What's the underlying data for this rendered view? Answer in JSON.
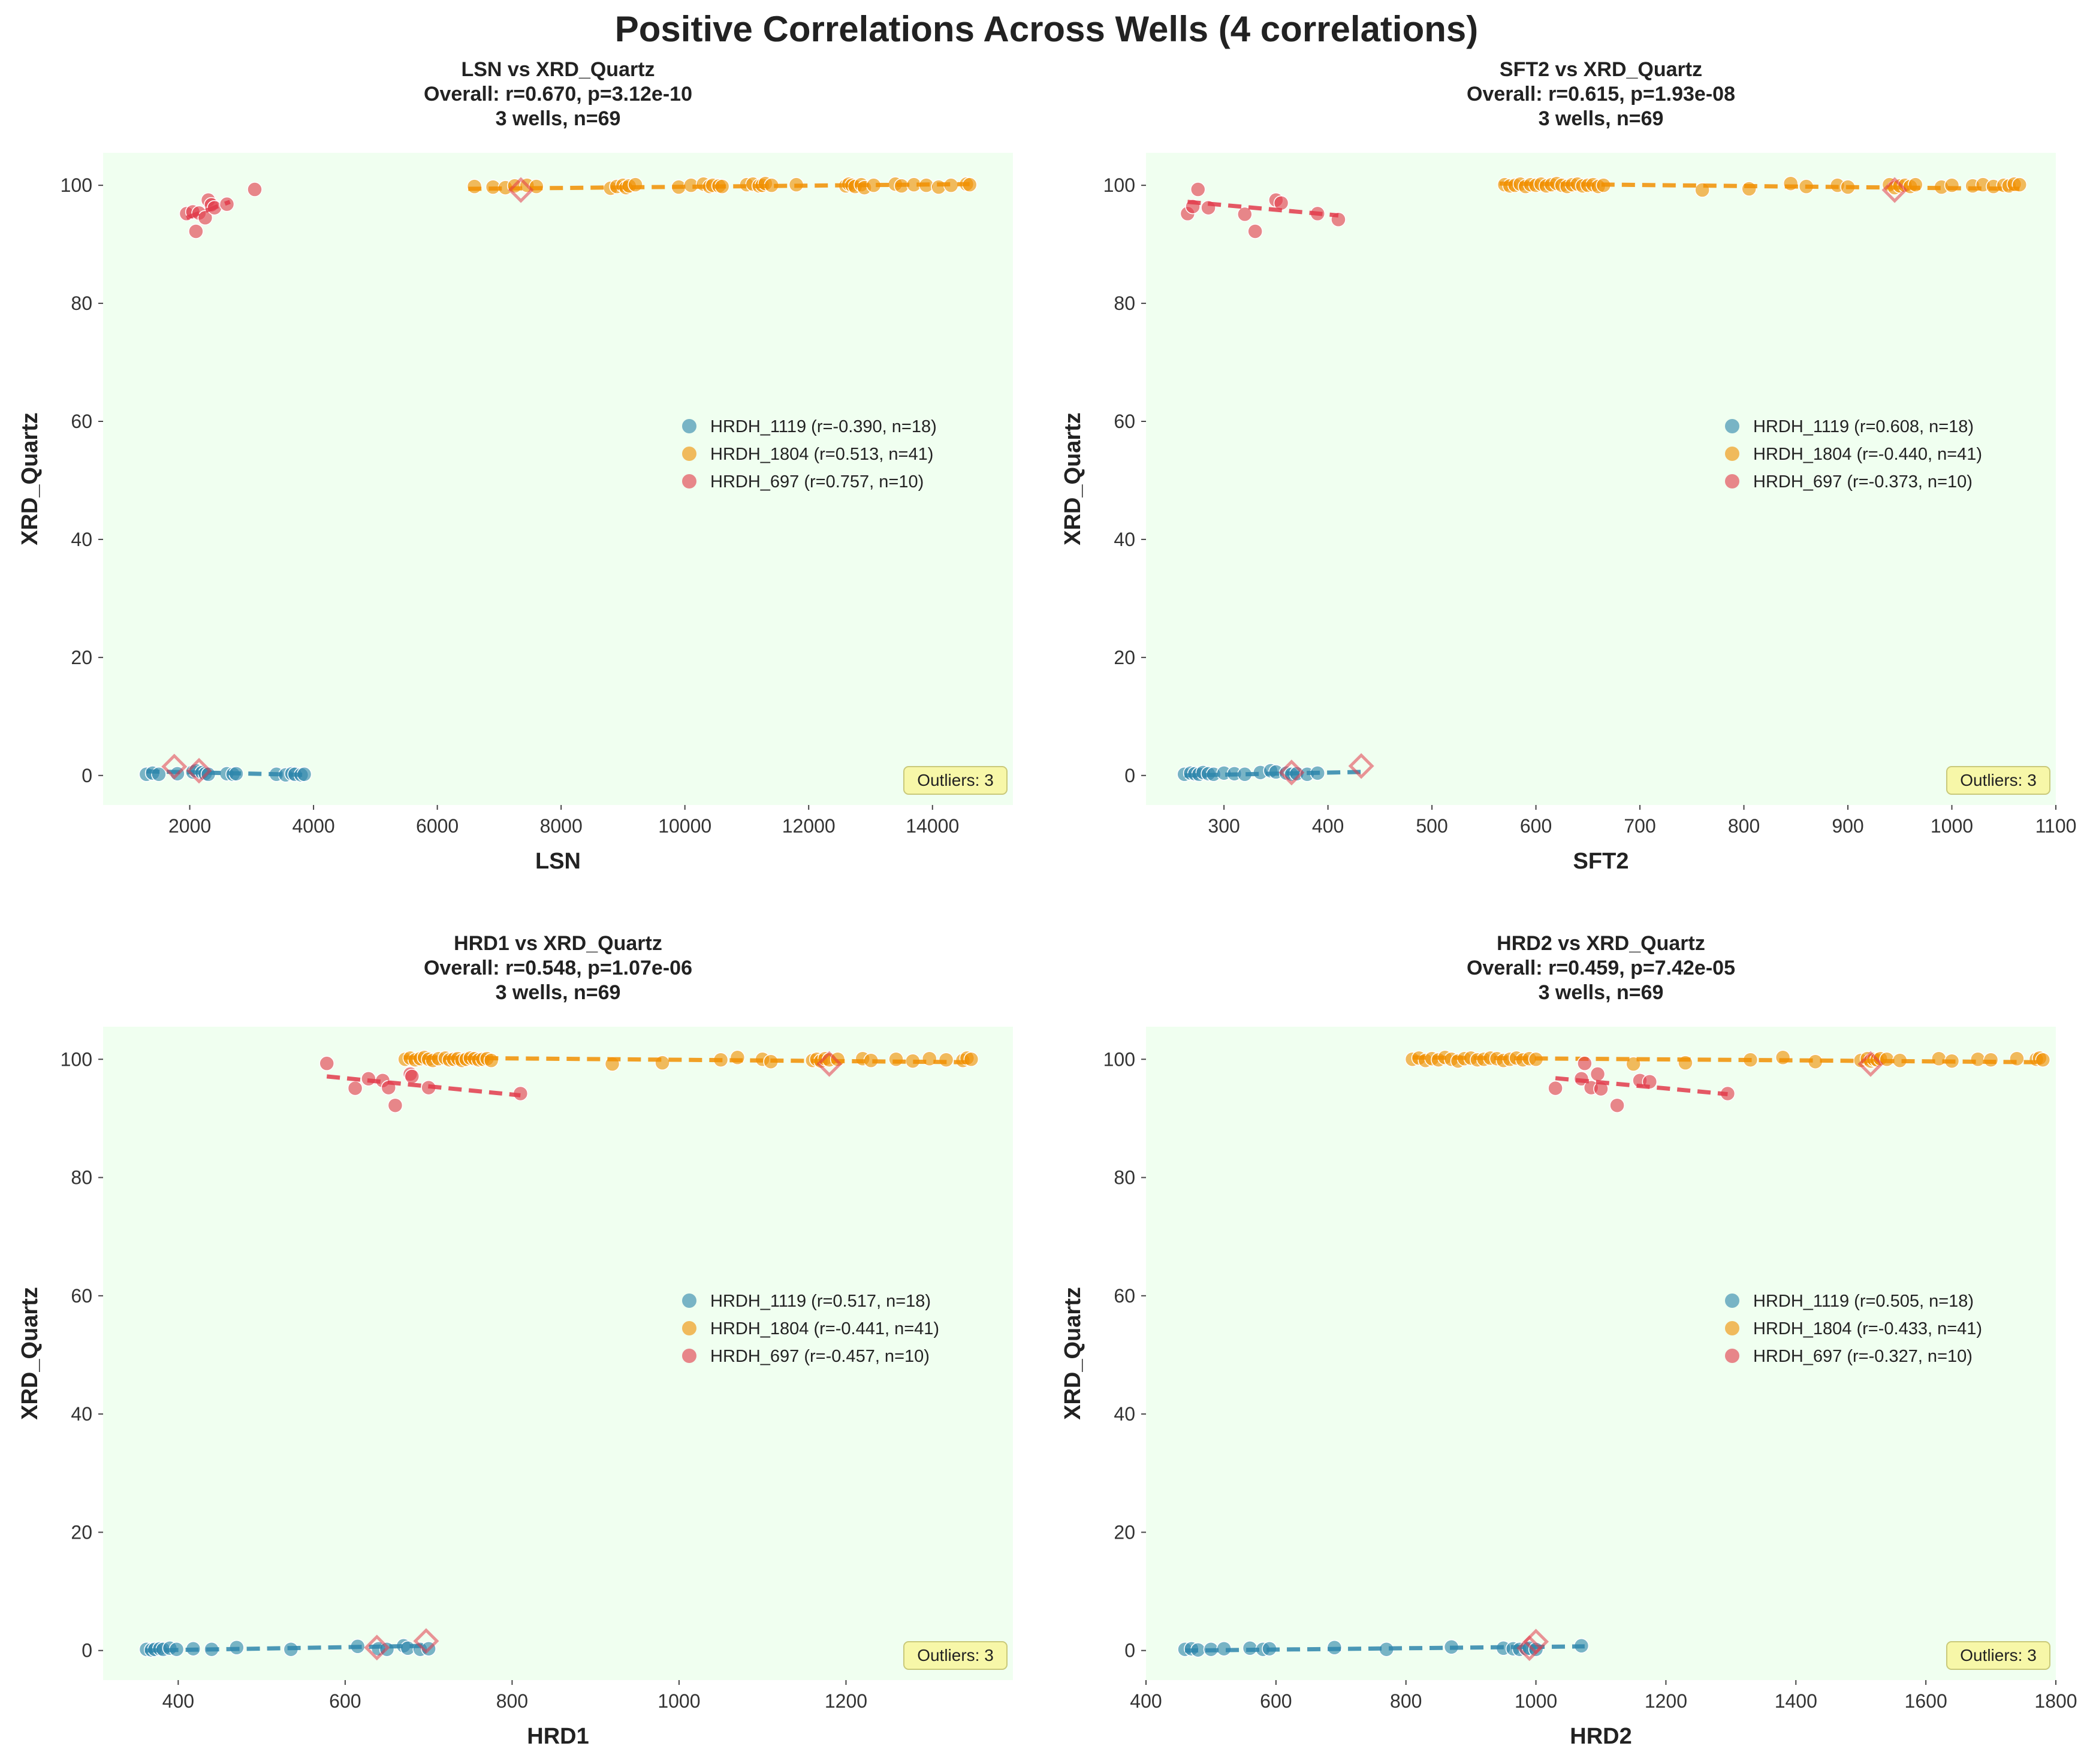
{
  "figure": {
    "title": "Positive Correlations Across Wells (4 correlations)",
    "plot_background": "#f0fff0",
    "well_colors": {
      "HRDH_1119": "#2E86AB",
      "HRDH_1804": "#F18F01",
      "HRDH_697": "#E23B4B"
    },
    "outlier_badge_color": "#f7f7a8"
  },
  "chart_data": [
    {
      "type": "scatter",
      "title": "LSN vs XRD_Quartz",
      "subtitle1": "Overall: r=0.670, p=3.12e-10",
      "subtitle2": "3 wells, n=69",
      "xlabel": "LSN",
      "ylabel": "XRD_Quartz",
      "xlim": [
        600,
        15300
      ],
      "ylim": [
        -5,
        105.5
      ],
      "xticks": [
        2000,
        4000,
        6000,
        8000,
        10000,
        12000,
        14000
      ],
      "yticks": [
        0,
        20,
        40,
        60,
        80,
        100
      ],
      "grid": false,
      "legend_position": "center-right",
      "outliers_label": "Outliers: 3",
      "series": [
        {
          "name": "HRDH_1119 (r=-0.390, n=18)",
          "well": "HRDH_1119",
          "x": [
            1300,
            1400,
            1500,
            1800,
            2050,
            2100,
            2200,
            2250,
            2300,
            2600,
            2700,
            2750,
            3400,
            3550,
            3650,
            3700,
            3800,
            3850
          ],
          "y": [
            0.2,
            0.4,
            0.2,
            0.3,
            0.6,
            0.8,
            0.5,
            0.3,
            0.2,
            0.3,
            0.2,
            0.3,
            0.2,
            0.1,
            0.3,
            0.2,
            0.1,
            0.2
          ],
          "fit": [
            [
              1300,
              0.7
            ],
            [
              3900,
              0.1
            ]
          ]
        },
        {
          "name": "HRDH_1804 (r=0.513, n=41)",
          "well": "HRDH_1804",
          "x": [
            6600,
            6900,
            7100,
            7250,
            7450,
            7600,
            8800,
            8900,
            9000,
            9050,
            9100,
            9200,
            9900,
            10100,
            10300,
            10400,
            10450,
            10550,
            10600,
            11000,
            11100,
            11200,
            11250,
            11300,
            11400,
            11800,
            12600,
            12650,
            12700,
            12750,
            12850,
            12900,
            13050,
            13400,
            13500,
            13700,
            13900,
            14100,
            14300,
            14550,
            14600
          ],
          "y": [
            99.8,
            99.7,
            99.6,
            99.9,
            100.0,
            99.8,
            99.5,
            99.8,
            100.0,
            99.6,
            99.9,
            100.1,
            99.7,
            100.0,
            100.2,
            99.8,
            100.0,
            99.9,
            99.8,
            100.1,
            100.2,
            99.9,
            100.0,
            100.3,
            100.0,
            100.1,
            99.9,
            100.2,
            100.0,
            99.8,
            100.1,
            99.6,
            100.0,
            100.2,
            99.9,
            100.1,
            100.0,
            99.7,
            100.0,
            100.2,
            100.1
          ],
          "fit": [
            [
              6500,
              99.4
            ],
            [
              14600,
              100.2
            ]
          ]
        },
        {
          "name": "HRDH_697 (r=0.757, n=10)",
          "well": "HRDH_697",
          "x": [
            1950,
            2050,
            2100,
            2150,
            2250,
            2300,
            2350,
            2400,
            2600,
            3050
          ],
          "y": [
            95.2,
            95.5,
            92.2,
            95.3,
            94.5,
            97.5,
            96.7,
            96.2,
            96.8,
            99.3
          ],
          "fit": [
            [
              1950,
              94.5
            ],
            [
              2650,
              97.2
            ]
          ]
        }
      ],
      "outliers": [
        {
          "x": 1750,
          "y": 1.5
        },
        {
          "x": 2150,
          "y": 0.8
        },
        {
          "x": 7350,
          "y": 99.2
        }
      ]
    },
    {
      "type": "scatter",
      "title": "SFT2 vs XRD_Quartz",
      "subtitle1": "Overall: r=0.615, p=1.93e-08",
      "subtitle2": "3 wells, n=69",
      "xlabel": "SFT2",
      "ylabel": "XRD_Quartz",
      "xlim": [
        225,
        1100
      ],
      "ylim": [
        -5,
        105.5
      ],
      "xticks": [
        300,
        400,
        500,
        600,
        700,
        800,
        900,
        1000,
        1100
      ],
      "yticks": [
        0,
        20,
        40,
        60,
        80,
        100
      ],
      "grid": false,
      "legend_position": "center-right",
      "outliers_label": "Outliers: 3",
      "series": [
        {
          "name": "HRDH_1119 (r=0.608, n=18)",
          "well": "HRDH_1119",
          "x": [
            262,
            268,
            272,
            276,
            280,
            285,
            290,
            300,
            310,
            320,
            335,
            345,
            350,
            360,
            365,
            370,
            380,
            390
          ],
          "y": [
            0.2,
            0.4,
            0.3,
            0.2,
            0.5,
            0.3,
            0.2,
            0.4,
            0.3,
            0.2,
            0.5,
            0.8,
            0.6,
            0.4,
            0.2,
            0.3,
            0.2,
            0.4
          ],
          "fit": [
            [
              262,
              0.0
            ],
            [
              432,
              0.6
            ]
          ]
        },
        {
          "name": "HRDH_1804 (r=-0.440, n=41)",
          "well": "HRDH_1804",
          "x": [
            570,
            575,
            580,
            585,
            590,
            595,
            600,
            605,
            610,
            615,
            620,
            625,
            630,
            635,
            640,
            645,
            650,
            655,
            660,
            665,
            760,
            805,
            845,
            860,
            890,
            900,
            940,
            945,
            950,
            955,
            960,
            965,
            990,
            1000,
            1020,
            1030,
            1040,
            1050,
            1055,
            1060,
            1065
          ],
          "y": [
            100.1,
            99.9,
            100.0,
            100.2,
            99.8,
            100.1,
            100.0,
            100.2,
            99.9,
            100.1,
            100.3,
            100.0,
            99.8,
            100.1,
            100.2,
            99.9,
            100.0,
            100.1,
            99.8,
            100.0,
            99.2,
            99.4,
            100.3,
            99.8,
            100.0,
            99.7,
            100.1,
            99.6,
            99.9,
            100.0,
            99.8,
            100.1,
            99.7,
            100.0,
            99.9,
            100.1,
            99.8,
            100.0,
            99.9,
            100.2,
            100.1
          ],
          "fit": [
            [
              565,
              100.3
            ],
            [
              1065,
              99.4
            ]
          ]
        },
        {
          "name": "HRDH_697 (r=-0.373, n=10)",
          "well": "HRDH_697",
          "x": [
            265,
            270,
            275,
            285,
            320,
            330,
            350,
            355,
            390,
            410
          ],
          "y": [
            95.2,
            96.4,
            99.3,
            96.2,
            95.1,
            92.2,
            97.5,
            97.0,
            95.2,
            94.2
          ],
          "fit": [
            [
              265,
              97.2
            ],
            [
              410,
              94.9
            ]
          ]
        }
      ],
      "outliers": [
        {
          "x": 365,
          "y": 0.5
        },
        {
          "x": 432,
          "y": 1.6
        },
        {
          "x": 945,
          "y": 99.2
        }
      ]
    },
    {
      "type": "scatter",
      "title": "HRD1 vs XRD_Quartz",
      "subtitle1": "Overall: r=0.548, p=1.07e-06",
      "subtitle2": "3 wells, n=69",
      "xlabel": "HRD1",
      "ylabel": "XRD_Quartz",
      "xlim": [
        310,
        1400
      ],
      "ylim": [
        -5,
        105.5
      ],
      "xticks": [
        400,
        600,
        800,
        1000,
        1200
      ],
      "yticks": [
        0,
        20,
        40,
        60,
        80,
        100
      ],
      "grid": false,
      "legend_position": "center-right",
      "outliers_label": "Outliers: 3",
      "series": [
        {
          "name": "HRDH_1119 (r=0.517, n=18)",
          "well": "HRDH_1119",
          "x": [
            362,
            368,
            372,
            378,
            382,
            390,
            398,
            418,
            440,
            470,
            535,
            615,
            640,
            650,
            670,
            675,
            690,
            700
          ],
          "y": [
            0.2,
            0.1,
            0.2,
            0.3,
            0.2,
            0.4,
            0.2,
            0.3,
            0.2,
            0.5,
            0.2,
            0.7,
            0.3,
            0.2,
            0.8,
            0.4,
            0.2,
            0.3
          ],
          "fit": [
            [
              360,
              0.0
            ],
            [
              700,
              0.8
            ]
          ]
        },
        {
          "name": "HRDH_1804 (r=-0.441, n=41)",
          "well": "HRDH_1804",
          "x": [
            672,
            678,
            684,
            690,
            695,
            700,
            705,
            712,
            720,
            725,
            730,
            735,
            740,
            745,
            750,
            755,
            760,
            765,
            770,
            775,
            920,
            980,
            1050,
            1070,
            1100,
            1110,
            1160,
            1165,
            1170,
            1175,
            1180,
            1190,
            1220,
            1230,
            1260,
            1280,
            1300,
            1320,
            1340,
            1345,
            1350
          ],
          "y": [
            100.0,
            100.2,
            99.9,
            100.1,
            100.3,
            100.0,
            99.8,
            100.1,
            100.2,
            99.9,
            100.0,
            100.1,
            99.8,
            100.0,
            100.2,
            100.1,
            99.9,
            100.0,
            100.1,
            99.8,
            99.2,
            99.4,
            99.9,
            100.3,
            100.0,
            99.6,
            99.8,
            100.0,
            99.7,
            100.1,
            99.9,
            100.0,
            100.1,
            99.8,
            100.0,
            99.7,
            100.1,
            99.9,
            99.8,
            100.2,
            100.0
          ],
          "fit": [
            [
              670,
              100.3
            ],
            [
              1350,
              99.5
            ]
          ]
        },
        {
          "name": "HRDH_697 (r=-0.457, n=10)",
          "well": "HRDH_697",
          "x": [
            578,
            612,
            628,
            645,
            652,
            660,
            678,
            680,
            700,
            810
          ],
          "y": [
            99.3,
            95.1,
            96.7,
            96.4,
            95.2,
            92.2,
            97.5,
            97.1,
            95.2,
            94.2
          ],
          "fit": [
            [
              578,
              97.1
            ],
            [
              810,
              93.9
            ]
          ]
        }
      ],
      "outliers": [
        {
          "x": 638,
          "y": 0.5
        },
        {
          "x": 697,
          "y": 1.6
        },
        {
          "x": 1180,
          "y": 99.2
        }
      ]
    },
    {
      "type": "scatter",
      "title": "HRD2 vs XRD_Quartz",
      "subtitle1": "Overall: r=0.459, p=7.42e-05",
      "subtitle2": "3 wells, n=69",
      "xlabel": "HRD2",
      "ylabel": "XRD_Quartz",
      "xlim": [
        400,
        1800
      ],
      "ylim": [
        -5,
        105.5
      ],
      "xticks": [
        400,
        600,
        800,
        1000,
        1200,
        1400,
        1600,
        1800
      ],
      "yticks": [
        0,
        20,
        40,
        60,
        80,
        100
      ],
      "grid": false,
      "legend_position": "center-right",
      "outliers_label": "Outliers: 3",
      "series": [
        {
          "name": "HRDH_1119 (r=0.505, n=18)",
          "well": "HRDH_1119",
          "x": [
            460,
            470,
            480,
            500,
            520,
            560,
            580,
            590,
            690,
            770,
            870,
            950,
            965,
            975,
            985,
            990,
            1000,
            1070
          ],
          "y": [
            0.2,
            0.3,
            0.1,
            0.2,
            0.3,
            0.4,
            0.2,
            0.3,
            0.5,
            0.2,
            0.6,
            0.4,
            0.3,
            0.2,
            0.3,
            0.4,
            0.2,
            0.8
          ],
          "fit": [
            [
              460,
              0.0
            ],
            [
              1075,
              0.7
            ]
          ]
        },
        {
          "name": "HRDH_1804 (r=-0.433, n=41)",
          "well": "HRDH_1804",
          "x": [
            810,
            820,
            830,
            840,
            850,
            860,
            870,
            880,
            890,
            900,
            910,
            920,
            930,
            940,
            950,
            960,
            970,
            980,
            990,
            1000,
            1150,
            1230,
            1330,
            1380,
            1430,
            1500,
            1510,
            1515,
            1520,
            1525,
            1530,
            1540,
            1560,
            1620,
            1640,
            1680,
            1700,
            1740,
            1770,
            1775,
            1780
          ],
          "y": [
            100.0,
            100.2,
            99.8,
            100.1,
            99.9,
            100.3,
            100.0,
            99.7,
            100.1,
            100.2,
            99.9,
            100.0,
            100.2,
            100.1,
            99.8,
            100.0,
            100.2,
            99.9,
            100.1,
            100.0,
            99.2,
            99.4,
            99.9,
            100.3,
            99.6,
            99.8,
            100.1,
            99.7,
            100.0,
            99.9,
            100.1,
            100.0,
            99.8,
            100.1,
            99.7,
            100.0,
            99.9,
            100.1,
            100.0,
            100.2,
            99.9
          ],
          "fit": [
            [
              810,
              100.3
            ],
            [
              1780,
              99.5
            ]
          ]
        },
        {
          "name": "HRDH_697 (r=-0.327, n=10)",
          "well": "HRDH_697",
          "x": [
            1030,
            1070,
            1075,
            1085,
            1095,
            1100,
            1125,
            1160,
            1175,
            1295
          ],
          "y": [
            95.1,
            96.7,
            99.3,
            95.2,
            97.5,
            95.0,
            92.2,
            96.4,
            96.2,
            94.2
          ],
          "fit": [
            [
              1030,
              96.8
            ],
            [
              1295,
              94.1
            ]
          ]
        }
      ],
      "outliers": [
        {
          "x": 990,
          "y": 0.4
        },
        {
          "x": 1000,
          "y": 1.5
        },
        {
          "x": 1515,
          "y": 99.2
        }
      ]
    }
  ]
}
